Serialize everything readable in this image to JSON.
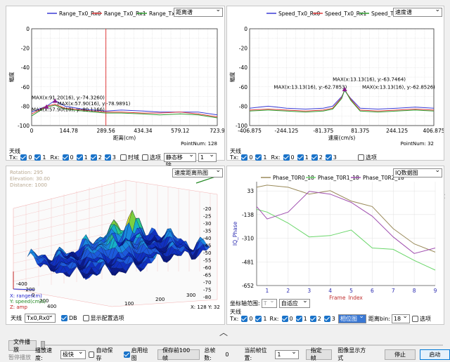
{
  "range_panel": {
    "legend": [
      "Range_Tx0_Rx0",
      "Range_Tx0_Rx1",
      "Range_Tx0_Rx2"
    ],
    "legend_colors": [
      "#3b3bd6",
      "#e03c3c",
      "#2e9e2e"
    ],
    "mode_select": "距离谱",
    "ylabel": "幅度",
    "xlabel": "距离(cm)",
    "y_ticks": [
      "0",
      "-20",
      "-40",
      "-60",
      "-80",
      "-100"
    ],
    "x_ticks": [
      "0",
      "144.78",
      "289.56",
      "434.34",
      "579.12",
      "723.9"
    ],
    "point_num": "PointNum: 128",
    "annotations": [
      "MAX(x:91.20(16), y:-74.3260)",
      "MAX(x:57.90(10), y:-80.1166)",
      "MAX(x:57.90(16), y:-78.9891)"
    ],
    "antenna_label": "天线",
    "tx_label": "Tx:",
    "rx_label": "Rx:",
    "tx_values": [
      "0",
      "1"
    ],
    "rx_values": [
      "0",
      "1",
      "2",
      "3"
    ],
    "time_domain": "时域",
    "option": "选项",
    "static_removal": "静态移除",
    "spin_value": "1"
  },
  "speed_panel": {
    "legend": [
      "Speed_Tx0_Rx0",
      "Speed_Tx0_Rx1",
      "Speed_Tx0_Rx2"
    ],
    "legend_colors": [
      "#3b3bd6",
      "#e03c3c",
      "#2e9e2e"
    ],
    "mode_select": "速度谱",
    "ylabel": "幅度",
    "xlabel": "速度(cm/s)",
    "y_ticks": [
      "0",
      "-20",
      "-40",
      "-60",
      "-80",
      "-100"
    ],
    "x_ticks": [
      "-406.875",
      "-244.125",
      "-81.375",
      "81.375",
      "244.125",
      "406.875"
    ],
    "point_num": "PointNum: 32",
    "annotations": [
      "MAX(x:13.13(16), y:-63.7464)",
      "MAX(x:13.13(16), y:-62.7853)",
      "MAX(x:13.13(16), y:-62.8526)"
    ],
    "antenna_label": "天线",
    "tx_label": "Tx:",
    "rx_label": "Rx:",
    "tx_values": [
      "0",
      "1"
    ],
    "rx_values": [
      "0",
      "1",
      "2",
      "3"
    ],
    "option": "选项"
  },
  "surface_panel": {
    "mode_select": "速度距离热图",
    "rotation": "Rotation: 295",
    "elevation": "Elevation: 30.00",
    "distance": "Distance: 1000",
    "z_ticks": [
      "-20",
      "-25",
      "-30",
      "-35",
      "-40",
      "-45",
      "-50",
      "-55",
      "-60",
      "-65",
      "-70",
      "-75",
      "-80"
    ],
    "x_ticks": [
      "100",
      "200",
      "300"
    ],
    "y_ticks": [
      "-400",
      "-200",
      "0",
      "200",
      "400"
    ],
    "axis_x": "X: range(cm)",
    "axis_y": "Y: speed(cm/s)",
    "axis_z": "Z: amp",
    "readout": "X: 128  Y: 32",
    "antenna_label": "天线",
    "antenna_select": "Tx0,Rx0",
    "db_label": "DB",
    "show_config": "显示配置选项"
  },
  "iq_panel": {
    "legend": [
      "Phase_T0R0_18",
      "Phase_T0R1_18",
      "Phase_T0R2_18"
    ],
    "legend_colors": [
      "#9a8a5a",
      "#6ad66a",
      "#a050b0"
    ],
    "mode_select": "IQ数据图",
    "ylabel": "IQ_Phase",
    "xlabel": "Frame_Index",
    "y_ticks": [
      "33",
      "-138",
      "-310",
      "-481",
      "-652"
    ],
    "x_ticks": [
      "1",
      "2",
      "3",
      "4",
      "5",
      "6",
      "7",
      "8",
      "9"
    ],
    "axis_range_label": "坐标轴范围:",
    "axis_range_select1": "T",
    "axis_range_select2": "自适应",
    "antenna_label": "天线",
    "tx_label": "Tx:",
    "rx_label": "Rx:",
    "tx_values": [
      "0",
      "1"
    ],
    "rx_values": [
      "0",
      "1",
      "2",
      "3"
    ],
    "data_select": "相位图",
    "range_bin_label": "距离bin:",
    "range_bin_value": "18",
    "option": "选项"
  },
  "bottom": {
    "file_play": "文件播放",
    "pause_play": "暂停播放",
    "play_speed_label": "播放速度:",
    "play_speed_value": "极快",
    "auto_save": "自动保存",
    "enable_draw": "启用绘图",
    "save_100": "保存前100帧",
    "total_frames_label": "总帧数:",
    "total_frames_value": "0",
    "current_pos_label": "当前帧位置:",
    "current_pos_value": "1",
    "goto_frame": "指定帧",
    "image_mode": "图像显示方式",
    "stop": "停止",
    "start": "启动"
  },
  "chart_data": [
    {
      "type": "line",
      "title": "",
      "xlabel": "距离(cm)",
      "ylabel": "幅度",
      "xlim": [
        0,
        723.9
      ],
      "ylim": [
        -100,
        0
      ],
      "series": [
        {
          "name": "Range_Tx0_Rx0",
          "x": [
            0,
            30,
            57.9,
            91.2,
            130,
            200,
            289.56,
            350,
            434.34,
            500,
            579.12,
            650,
            723.9
          ],
          "values": [
            -86,
            -83,
            -80,
            -74,
            -80,
            -83,
            -85,
            -84,
            -85,
            -86,
            -86,
            -86,
            -89
          ]
        },
        {
          "name": "Range_Tx0_Rx1",
          "x": [
            0,
            30,
            57.9,
            91.2,
            130,
            200,
            289.56,
            350,
            434.34,
            500,
            579.12,
            650,
            723.9
          ],
          "values": [
            -88,
            -84,
            -80,
            -78,
            -82,
            -84,
            -86,
            -86,
            -87,
            -87,
            -86,
            -88,
            -91
          ]
        },
        {
          "name": "Range_Tx0_Rx2",
          "x": [
            0,
            30,
            57.9,
            91.2,
            130,
            200,
            289.56,
            350,
            434.34,
            500,
            579.12,
            650,
            723.9
          ],
          "values": [
            -90,
            -85,
            -81,
            -79,
            -83,
            -85,
            -87,
            -87,
            -88,
            -89,
            -88,
            -89,
            -92
          ]
        }
      ]
    },
    {
      "type": "line",
      "title": "",
      "xlabel": "速度(cm/s)",
      "ylabel": "幅度",
      "xlim": [
        -406.875,
        406.875
      ],
      "ylim": [
        -100,
        0
      ],
      "series": [
        {
          "name": "Speed_Tx0_Rx0",
          "x": [
            -406.875,
            -325,
            -244.125,
            -160,
            -81.375,
            -40,
            0,
            13.13,
            40,
            81.375,
            160,
            244.125,
            325,
            406.875
          ],
          "values": [
            -82,
            -80,
            -82,
            -83,
            -82,
            -80,
            -70,
            -64,
            -72,
            -82,
            -83,
            -82,
            -81,
            -82
          ]
        },
        {
          "name": "Speed_Tx0_Rx1",
          "x": [
            -406.875,
            -325,
            -244.125,
            -160,
            -81.375,
            -40,
            0,
            13.13,
            40,
            81.375,
            160,
            244.125,
            325,
            406.875
          ],
          "values": [
            -84,
            -83,
            -84,
            -85,
            -84,
            -82,
            -71,
            -63,
            -73,
            -84,
            -85,
            -84,
            -83,
            -84
          ]
        },
        {
          "name": "Speed_Tx0_Rx2",
          "x": [
            -406.875,
            -325,
            -244.125,
            -160,
            -81.375,
            -40,
            0,
            13.13,
            40,
            81.375,
            160,
            244.125,
            325,
            406.875
          ],
          "values": [
            -85,
            -84,
            -85,
            -86,
            -85,
            -83,
            -72,
            -63,
            -74,
            -85,
            -86,
            -85,
            -84,
            -85
          ]
        }
      ]
    },
    {
      "type": "line",
      "title": "",
      "xlabel": "Frame_Index",
      "ylabel": "IQ_Phase",
      "xlim": [
        0.5,
        9
      ],
      "ylim": [
        -652,
        100
      ],
      "series": [
        {
          "name": "Phase_T0R0_18",
          "x": [
            0.5,
            1,
            2,
            3,
            4,
            5,
            6,
            7,
            8,
            9
          ],
          "values": [
            60,
            75,
            60,
            10,
            35,
            -40,
            -80,
            -240,
            -350,
            -410
          ]
        },
        {
          "name": "Phase_T0R1_18",
          "x": [
            0.5,
            1,
            2,
            3,
            4,
            5,
            6,
            7,
            8,
            9
          ],
          "values": [
            -100,
            -120,
            -200,
            -300,
            -290,
            -250,
            -380,
            -390,
            -470,
            -540
          ]
        },
        {
          "name": "Phase_T0R2_18",
          "x": [
            0.5,
            1,
            2,
            3,
            4,
            5,
            6,
            7,
            8,
            9
          ],
          "values": [
            -80,
            -170,
            -120,
            30,
            10,
            -50,
            -150,
            -300,
            -420,
            -380
          ]
        }
      ]
    }
  ]
}
